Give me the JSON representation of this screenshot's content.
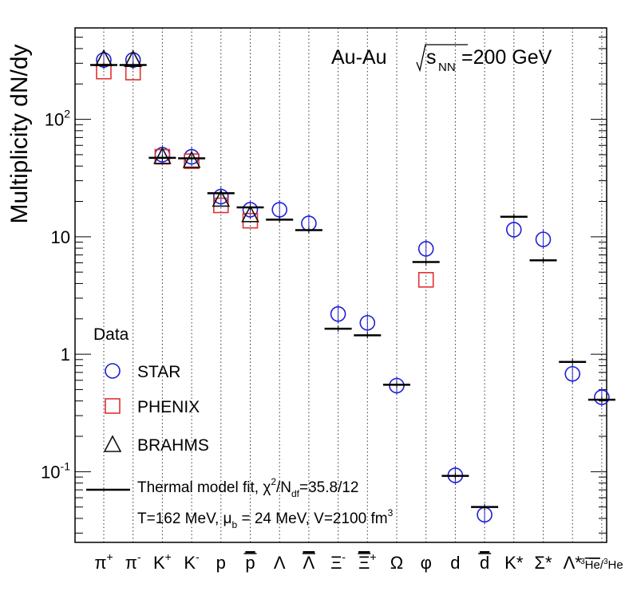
{
  "chart_data": {
    "type": "scatter",
    "title": "Au-Au  √s_NN=200 GeV",
    "title_parts": {
      "system": "Au-Au",
      "s": "s",
      "nn": "NN",
      "energy": "=200 GeV"
    },
    "xlabel": "",
    "ylabel": "Multiplicity dN/dy",
    "yscale": "log",
    "ylim": [
      0.025,
      600
    ],
    "y_ticks": [
      {
        "value": 0.1,
        "base": "10",
        "exp": "-1"
      },
      {
        "value": 1,
        "label": "1"
      },
      {
        "value": 10,
        "label": "10"
      },
      {
        "value": 100,
        "base": "10",
        "exp": "2"
      }
    ],
    "categories": [
      {
        "base": "π",
        "sup": "+"
      },
      {
        "base": "π",
        "sup": "-"
      },
      {
        "base": "K",
        "sup": "+"
      },
      {
        "base": "K",
        "sup": "-"
      },
      {
        "base": "p"
      },
      {
        "base": "p",
        "bar": true
      },
      {
        "base": "Λ"
      },
      {
        "base": "Λ",
        "bar": true
      },
      {
        "base": "Ξ",
        "sup": "-"
      },
      {
        "base": "Ξ",
        "sup": "+",
        "bar": true
      },
      {
        "base": "Ω"
      },
      {
        "base": "φ"
      },
      {
        "base": "d"
      },
      {
        "base": "d",
        "bar": true
      },
      {
        "base": "K*"
      },
      {
        "base": "Σ*"
      },
      {
        "base": "Λ*"
      },
      {
        "pre": "3",
        "base": "He",
        "bar": true,
        "slash": "/",
        "pre2": "3",
        "base2": "He",
        "small": true
      }
    ],
    "series": [
      {
        "name": "STAR",
        "marker": "circle",
        "color": "#1f1fd6",
        "values": [
          320,
          320,
          50,
          48,
          22,
          17,
          17,
          13,
          2.2,
          1.85,
          0.54,
          7.9,
          0.093,
          0.043,
          11.5,
          9.5,
          0.68,
          0.43
        ]
      },
      {
        "name": "PHENIX",
        "marker": "square",
        "color": "#e03131",
        "values": [
          255,
          250,
          48,
          44,
          18.5,
          13.7,
          null,
          null,
          null,
          null,
          null,
          4.3,
          null,
          null,
          null,
          null,
          null,
          null
        ]
      },
      {
        "name": "BRAHMS",
        "marker": "triangle",
        "color": "#111111",
        "values": [
          330,
          325,
          48.5,
          45,
          21,
          15.5,
          null,
          null,
          null,
          null,
          null,
          null,
          null,
          null,
          null,
          null,
          null,
          null
        ]
      },
      {
        "name": "Thermal model fit",
        "marker": "hline",
        "color": "#000000",
        "values": [
          290,
          290,
          47,
          46.5,
          23.5,
          17.8,
          14,
          11.4,
          1.65,
          1.45,
          0.55,
          6.1,
          0.092,
          0.05,
          14.8,
          6.3,
          0.86,
          0.41
        ]
      }
    ],
    "legend": {
      "header": "Data",
      "placement": "bottom-left",
      "entries": [
        "STAR",
        "PHENIX",
        "BRAHMS"
      ],
      "fit_label": "Thermal model fit, χ²/N_df=35.8/12",
      "fit_text": {
        "lead": "Thermal model fit, χ",
        "sq": "2",
        "mid": "/N",
        "sub": "df",
        "tail": "=35.8/12"
      },
      "params_text": {
        "a": "T=162 MeV, μ",
        "sub": "b",
        "b": " = 24 MeV, V=2100 fm",
        "sup": "3"
      }
    },
    "grid": "vertical dotted lines at each category"
  }
}
